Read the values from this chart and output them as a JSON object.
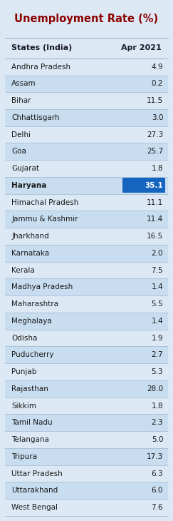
{
  "title": "Unemployment Rate (%)",
  "header_state": "States (India)",
  "header_value": "Apr 2021",
  "states": [
    "Andhra Pradesh",
    "Assam",
    "Bihar",
    "Chhattisgarh",
    "Delhi",
    "Goa",
    "Gujarat",
    "Haryana",
    "Himachal Pradesh",
    "Jammu & Kashmir",
    "Jharkhand",
    "Karnataka",
    "Kerala",
    "Madhya Pradesh",
    "Maharashtra",
    "Meghalaya",
    "Odisha",
    "Puducherry",
    "Punjab",
    "Rajasthan",
    "Sikkim",
    "Tamil Nadu",
    "Telangana",
    "Tripura",
    "Uttar Pradesh",
    "Uttarakhand",
    "West Bengal"
  ],
  "values": [
    4.9,
    0.2,
    11.5,
    3.0,
    27.3,
    25.7,
    1.8,
    35.1,
    11.1,
    11.4,
    16.5,
    2.0,
    7.5,
    1.4,
    5.5,
    1.4,
    1.9,
    2.7,
    5.3,
    28.0,
    1.8,
    2.3,
    5.0,
    17.3,
    6.3,
    6.0,
    7.6
  ],
  "highlight_state": "Haryana",
  "highlight_bg": "#1565c0",
  "highlight_fg": "#ffffff",
  "bg_color": "#dce9f5",
  "title_color": "#8b0000",
  "header_color": "#1a1a2e",
  "text_color": "#1a1a1a",
  "row_alt_color": "#dce9f5",
  "row_main_color": "#c8ddf0",
  "separator_color": "#a0b8d0"
}
